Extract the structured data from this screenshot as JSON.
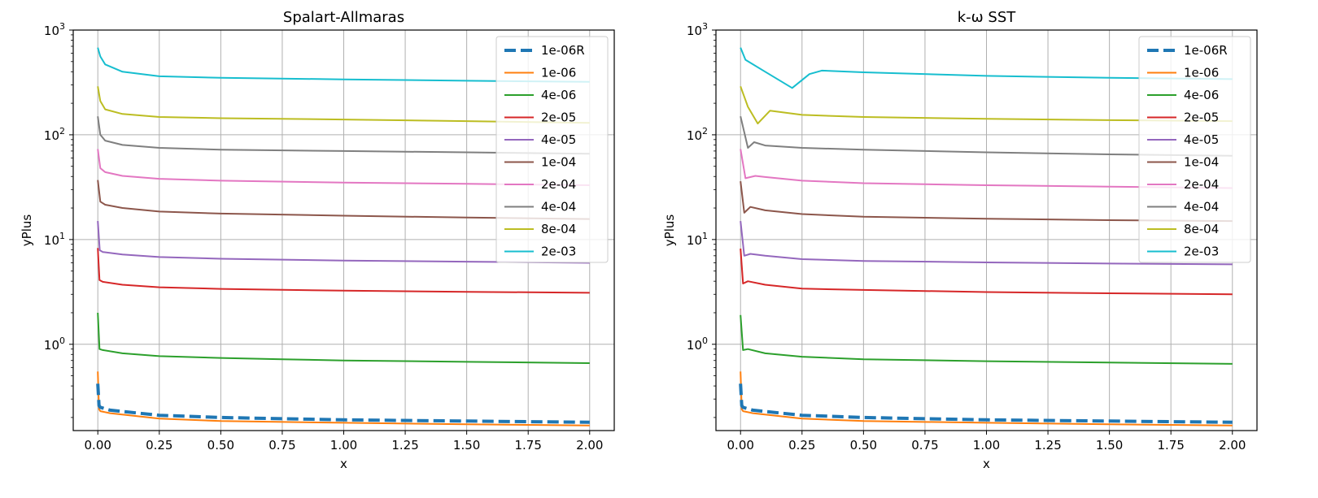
{
  "chart_data": [
    {
      "type": "line",
      "title": "Spalart-Allmaras",
      "xlabel": "x",
      "ylabel": "yPlus",
      "yscale": "log",
      "xlim": [
        -0.1,
        2.1
      ],
      "ylim": [
        0.15,
        1000
      ],
      "xticks": [
        "0.00",
        "0.25",
        "0.50",
        "0.75",
        "1.00",
        "1.25",
        "1.50",
        "1.75",
        "2.00"
      ],
      "yticks": [
        {
          "base": "10",
          "exp": "0"
        },
        {
          "base": "10",
          "exp": "1"
        },
        {
          "base": "10",
          "exp": "2"
        },
        {
          "base": "10",
          "exp": "3"
        }
      ],
      "grid": true,
      "legend_position": "top-right",
      "series": [
        {
          "name": "1e-06R",
          "color": "#1f77b4",
          "dashed": true,
          "points": [
            [
              0,
              0.42
            ],
            [
              0.005,
              0.26
            ],
            [
              0.01,
              0.25
            ],
            [
              0.05,
              0.235
            ],
            [
              0.25,
              0.21
            ],
            [
              0.5,
              0.2
            ],
            [
              1.0,
              0.19
            ],
            [
              1.5,
              0.185
            ],
            [
              2.0,
              0.18
            ]
          ]
        },
        {
          "name": "1e-06",
          "color": "#ff7f0e",
          "dashed": false,
          "points": [
            [
              0,
              0.55
            ],
            [
              0.005,
              0.24
            ],
            [
              0.01,
              0.23
            ],
            [
              0.05,
              0.22
            ],
            [
              0.25,
              0.195
            ],
            [
              0.5,
              0.185
            ],
            [
              1.0,
              0.178
            ],
            [
              1.5,
              0.172
            ],
            [
              2.0,
              0.168
            ]
          ]
        },
        {
          "name": "4e-06",
          "color": "#2ca02c",
          "dashed": false,
          "points": [
            [
              0,
              2.0
            ],
            [
              0.007,
              0.9
            ],
            [
              0.02,
              0.88
            ],
            [
              0.1,
              0.82
            ],
            [
              0.25,
              0.77
            ],
            [
              0.5,
              0.74
            ],
            [
              0.75,
              0.72
            ],
            [
              1.0,
              0.7
            ],
            [
              1.5,
              0.68
            ],
            [
              2.0,
              0.66
            ]
          ]
        },
        {
          "name": "2e-05",
          "color": "#d62728",
          "dashed": false,
          "points": [
            [
              0,
              8.3
            ],
            [
              0.007,
              4.1
            ],
            [
              0.02,
              3.95
            ],
            [
              0.1,
              3.7
            ],
            [
              0.25,
              3.5
            ],
            [
              0.5,
              3.38
            ],
            [
              1.0,
              3.25
            ],
            [
              1.5,
              3.17
            ],
            [
              2.0,
              3.1
            ]
          ]
        },
        {
          "name": "4e-05",
          "color": "#9467bd",
          "dashed": false,
          "points": [
            [
              0,
              15
            ],
            [
              0.008,
              7.9
            ],
            [
              0.02,
              7.6
            ],
            [
              0.1,
              7.2
            ],
            [
              0.25,
              6.8
            ],
            [
              0.5,
              6.55
            ],
            [
              1.0,
              6.3
            ],
            [
              1.5,
              6.15
            ],
            [
              2.0,
              6.0
            ]
          ]
        },
        {
          "name": "1e-04",
          "color": "#8c564b",
          "dashed": false,
          "points": [
            [
              0,
              37
            ],
            [
              0.01,
              23
            ],
            [
              0.03,
              21.5
            ],
            [
              0.1,
              20
            ],
            [
              0.25,
              18.5
            ],
            [
              0.5,
              17.7
            ],
            [
              1.0,
              16.9
            ],
            [
              1.5,
              16.2
            ],
            [
              2.0,
              15.7
            ]
          ]
        },
        {
          "name": "2e-04",
          "color": "#e377c2",
          "dashed": false,
          "points": [
            [
              0,
              73
            ],
            [
              0.01,
              48
            ],
            [
              0.03,
              44
            ],
            [
              0.1,
              40.5
            ],
            [
              0.25,
              38
            ],
            [
              0.5,
              36.5
            ],
            [
              1.0,
              35
            ],
            [
              1.5,
              34
            ],
            [
              2.0,
              33
            ]
          ]
        },
        {
          "name": "4e-04",
          "color": "#7f7f7f",
          "dashed": false,
          "points": [
            [
              0,
              150
            ],
            [
              0.01,
              100
            ],
            [
              0.03,
              88
            ],
            [
              0.1,
              80
            ],
            [
              0.25,
              75
            ],
            [
              0.5,
              72
            ],
            [
              1.0,
              70
            ],
            [
              1.5,
              68
            ],
            [
              2.0,
              66
            ]
          ]
        },
        {
          "name": "8e-04",
          "color": "#bcbd22",
          "dashed": false,
          "points": [
            [
              0,
              290
            ],
            [
              0.01,
              210
            ],
            [
              0.03,
              175
            ],
            [
              0.1,
              158
            ],
            [
              0.25,
              148
            ],
            [
              0.5,
              144
            ],
            [
              1.0,
              140
            ],
            [
              1.5,
              135
            ],
            [
              2.0,
              130
            ]
          ]
        },
        {
          "name": "2e-03",
          "color": "#17becf",
          "dashed": false,
          "points": [
            [
              0,
              680
            ],
            [
              0.01,
              560
            ],
            [
              0.03,
              470
            ],
            [
              0.1,
              400
            ],
            [
              0.25,
              362
            ],
            [
              0.5,
              350
            ],
            [
              1.0,
              338
            ],
            [
              1.5,
              328
            ],
            [
              2.0,
              320
            ]
          ]
        }
      ]
    },
    {
      "type": "line",
      "title": "k-ω SST",
      "xlabel": "x",
      "ylabel": "yPlus",
      "yscale": "log",
      "xlim": [
        -0.1,
        2.1
      ],
      "ylim": [
        0.15,
        1000
      ],
      "xticks": [
        "0.00",
        "0.25",
        "0.50",
        "0.75",
        "1.00",
        "1.25",
        "1.50",
        "1.75",
        "2.00"
      ],
      "yticks": [
        {
          "base": "10",
          "exp": "0"
        },
        {
          "base": "10",
          "exp": "1"
        },
        {
          "base": "10",
          "exp": "2"
        },
        {
          "base": "10",
          "exp": "3"
        }
      ],
      "grid": true,
      "legend_position": "top-right",
      "series": [
        {
          "name": "1e-06R",
          "color": "#1f77b4",
          "dashed": true,
          "points": [
            [
              0,
              0.42
            ],
            [
              0.005,
              0.26
            ],
            [
              0.01,
              0.25
            ],
            [
              0.05,
              0.235
            ],
            [
              0.25,
              0.21
            ],
            [
              0.5,
              0.2
            ],
            [
              1.0,
              0.19
            ],
            [
              1.5,
              0.185
            ],
            [
              2.0,
              0.18
            ]
          ]
        },
        {
          "name": "1e-06",
          "color": "#ff7f0e",
          "dashed": false,
          "points": [
            [
              0,
              0.55
            ],
            [
              0.005,
              0.24
            ],
            [
              0.01,
              0.23
            ],
            [
              0.05,
              0.22
            ],
            [
              0.25,
              0.195
            ],
            [
              0.5,
              0.185
            ],
            [
              1.0,
              0.178
            ],
            [
              1.5,
              0.172
            ],
            [
              2.0,
              0.168
            ]
          ]
        },
        {
          "name": "4e-06",
          "color": "#2ca02c",
          "dashed": false,
          "points": [
            [
              0,
              1.9
            ],
            [
              0.01,
              0.88
            ],
            [
              0.03,
              0.9
            ],
            [
              0.1,
              0.82
            ],
            [
              0.25,
              0.76
            ],
            [
              0.5,
              0.72
            ],
            [
              1.0,
              0.69
            ],
            [
              1.5,
              0.67
            ],
            [
              2.0,
              0.65
            ]
          ]
        },
        {
          "name": "2e-05",
          "color": "#d62728",
          "dashed": false,
          "points": [
            [
              0,
              8.2
            ],
            [
              0.01,
              3.8
            ],
            [
              0.03,
              4.0
            ],
            [
              0.1,
              3.7
            ],
            [
              0.25,
              3.4
            ],
            [
              0.5,
              3.3
            ],
            [
              1.0,
              3.15
            ],
            [
              1.5,
              3.07
            ],
            [
              2.0,
              3.0
            ]
          ]
        },
        {
          "name": "4e-05",
          "color": "#9467bd",
          "dashed": false,
          "points": [
            [
              0,
              15
            ],
            [
              0.015,
              7.0
            ],
            [
              0.04,
              7.3
            ],
            [
              0.1,
              7.0
            ],
            [
              0.25,
              6.5
            ],
            [
              0.5,
              6.25
            ],
            [
              1.0,
              6.05
            ],
            [
              1.5,
              5.9
            ],
            [
              2.0,
              5.8
            ]
          ]
        },
        {
          "name": "1e-04",
          "color": "#8c564b",
          "dashed": false,
          "points": [
            [
              0,
              36
            ],
            [
              0.015,
              18
            ],
            [
              0.04,
              20.5
            ],
            [
              0.1,
              19
            ],
            [
              0.25,
              17.5
            ],
            [
              0.5,
              16.5
            ],
            [
              1.0,
              15.8
            ],
            [
              1.5,
              15.3
            ],
            [
              2.0,
              15.0
            ]
          ]
        },
        {
          "name": "2e-04",
          "color": "#e377c2",
          "dashed": false,
          "points": [
            [
              0,
              73
            ],
            [
              0.02,
              38.5
            ],
            [
              0.06,
              40.5
            ],
            [
              0.1,
              39.5
            ],
            [
              0.25,
              36.5
            ],
            [
              0.5,
              34.5
            ],
            [
              1.0,
              33
            ],
            [
              1.5,
              32
            ],
            [
              2.0,
              31
            ]
          ]
        },
        {
          "name": "4e-04",
          "color": "#7f7f7f",
          "dashed": false,
          "points": [
            [
              0,
              150
            ],
            [
              0.03,
              75
            ],
            [
              0.055,
              85
            ],
            [
              0.1,
              79
            ],
            [
              0.25,
              75
            ],
            [
              0.5,
              72
            ],
            [
              1.0,
              68
            ],
            [
              1.5,
              65
            ],
            [
              2.0,
              63
            ]
          ]
        },
        {
          "name": "8e-04",
          "color": "#bcbd22",
          "dashed": false,
          "points": [
            [
              0,
              290
            ],
            [
              0.03,
              185
            ],
            [
              0.07,
              128
            ],
            [
              0.12,
              170
            ],
            [
              0.25,
              155
            ],
            [
              0.5,
              148
            ],
            [
              1.0,
              142
            ],
            [
              1.5,
              138
            ],
            [
              2.0,
              135
            ]
          ]
        },
        {
          "name": "2e-03",
          "color": "#17becf",
          "dashed": false,
          "points": [
            [
              0,
              680
            ],
            [
              0.02,
              520
            ],
            [
              0.1,
              400
            ],
            [
              0.21,
              280
            ],
            [
              0.28,
              380
            ],
            [
              0.33,
              410
            ],
            [
              0.5,
              395
            ],
            [
              1.0,
              365
            ],
            [
              1.5,
              350
            ],
            [
              2.0,
              340
            ]
          ]
        }
      ]
    }
  ]
}
